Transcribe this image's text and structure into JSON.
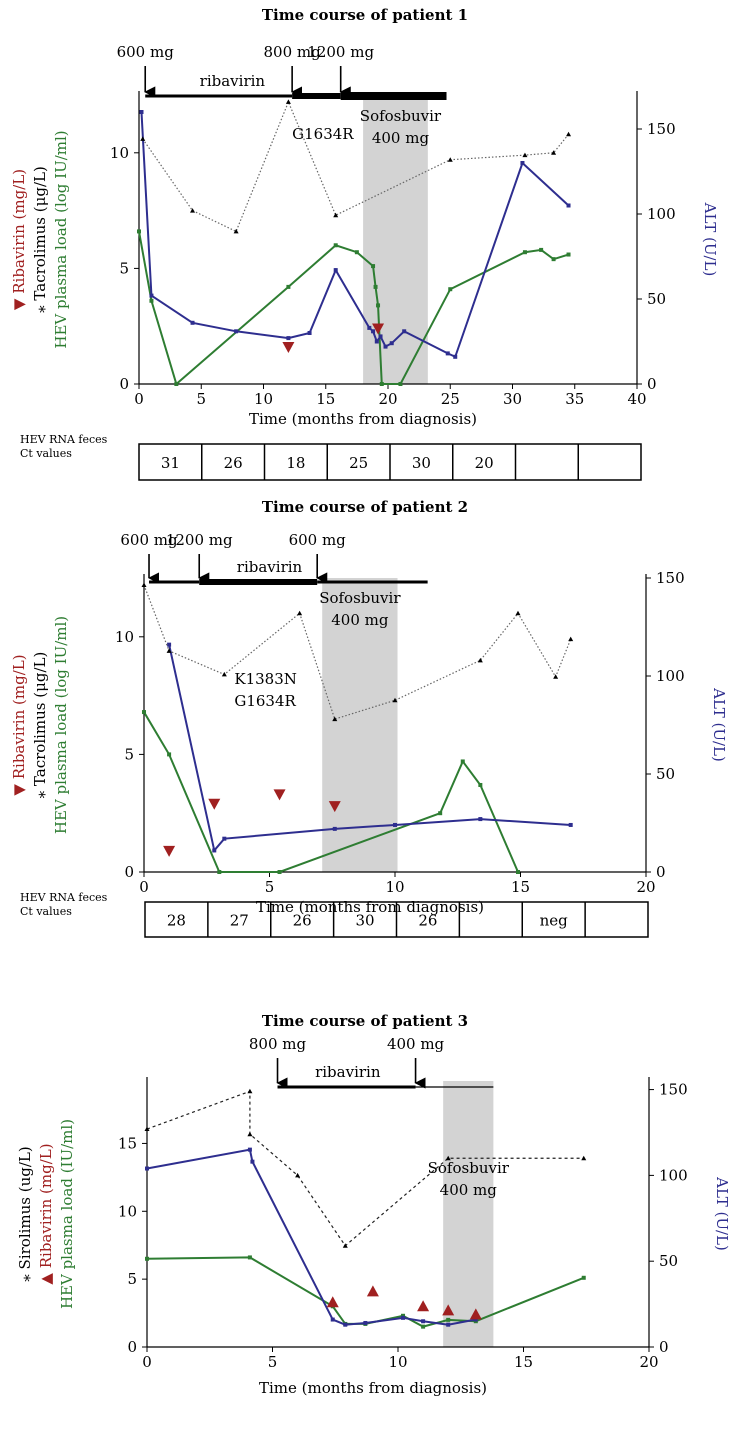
{
  "chart_data": [
    {
      "type": "line",
      "title": "Time course of patient 1",
      "xlabel": "Time (months from diagnosis)",
      "xlim": [
        0,
        40
      ],
      "x_ticks": [
        "0",
        "5",
        "10",
        "15",
        "20",
        "25",
        "30",
        "35",
        "40"
      ],
      "ylim_left": [
        0,
        12.5
      ],
      "y_ticks_left": [
        "0",
        "5",
        "10"
      ],
      "ylim_right": [
        0,
        170
      ],
      "y_ticks_right": [
        "0",
        "50",
        "100",
        "150"
      ],
      "ylabel_left": [
        {
          "text": "Ribavirin (mg/L)",
          "color": "#a02020",
          "marker": "▼"
        },
        {
          "text": "Tacrolimus (μg/L)",
          "color": "#000000",
          "marker": "⁎"
        },
        {
          "text": "HEV plasma load (log IU/ml)",
          "color": "#2e7d32",
          "marker": ""
        }
      ],
      "ylabel_right": "ALT (U/L)",
      "ylabel_right_color": "#2e2e8f",
      "shaded_region": [
        18,
        23.2
      ],
      "shaded_label": [
        "Sofosbuvir",
        "400 mg"
      ],
      "shaded_label_x": 21,
      "mutation_label": [
        "G1634R"
      ],
      "mutation_x": 12.3,
      "mutation_y": 10.6,
      "therapy": {
        "label": "ribavirin",
        "label_x": 7.5,
        "segments": [
          {
            "from": 0.5,
            "to": 12.3,
            "weight": 3
          },
          {
            "from": 12.3,
            "to": 16.2,
            "weight": 6
          },
          {
            "from": 16.2,
            "to": 24.7,
            "weight": 8
          }
        ],
        "doses": [
          {
            "label": "600 mg",
            "x": 0.5
          },
          {
            "label": "800 mg",
            "x": 12.3
          },
          {
            "label": "1200 mg",
            "x": 16.2
          }
        ]
      },
      "series": [
        {
          "name": "HEV plasma load",
          "axis": "left",
          "color": "#2e7d32",
          "style": "solid",
          "x": [
            0,
            1,
            3,
            12,
            15.8,
            17.5,
            18.8,
            19,
            19.2,
            19.5,
            21,
            25,
            31,
            32.3,
            33.3,
            34.5
          ],
          "y": [
            6.6,
            3.6,
            0,
            4.2,
            6,
            5.7,
            5.1,
            4.2,
            3.4,
            0,
            0,
            4.1,
            5.7,
            5.8,
            5.4,
            5.6
          ]
        },
        {
          "name": "ALT",
          "axis": "right",
          "color": "#2e2e8f",
          "style": "solid",
          "x": [
            0.2,
            1,
            4.3,
            7.8,
            12,
            13.7,
            15.8,
            18.5,
            18.8,
            19.1,
            19.4,
            19.8,
            20.3,
            21.3,
            24.8,
            25.4,
            30.8,
            34.5
          ],
          "y": [
            160,
            52,
            36,
            31,
            27,
            30,
            67,
            33,
            31,
            25,
            28,
            22,
            24,
            31,
            18,
            16,
            130,
            105
          ]
        },
        {
          "name": "Tacrolimus",
          "axis": "left",
          "color": "#666666",
          "style": "dotted",
          "x": [
            0.3,
            4.3,
            7.8,
            12,
            15.8,
            25,
            31,
            33.3,
            34.5
          ],
          "y": [
            10.6,
            7.5,
            6.6,
            12.2,
            7.3,
            9.7,
            9.9,
            10,
            10.8
          ]
        },
        {
          "name": "Ribavirin",
          "axis": "left",
          "color": "#a02020",
          "style": "markers",
          "marker": "down",
          "x": [
            12,
            19.2
          ],
          "y": [
            1.6,
            2.4
          ]
        }
      ],
      "ct_label": [
        "HEV RNA feces",
        "Ct values"
      ],
      "ct_values": [
        "31",
        "26",
        "18",
        "25",
        "30",
        "20",
        "",
        ""
      ]
    },
    {
      "type": "line",
      "title": "Time course of patient 2",
      "xlabel": "Time (months from diagnosis)",
      "xlim": [
        0,
        20
      ],
      "x_ticks": [
        "0",
        "5",
        "10",
        "15",
        "20"
      ],
      "ylim_left": [
        0,
        12.5
      ],
      "y_ticks_left": [
        "0",
        "5",
        "10"
      ],
      "ylim_right": [
        0,
        150
      ],
      "y_ticks_right": [
        "0",
        "50",
        "100",
        "150"
      ],
      "ylabel_left": [
        {
          "text": "Ribavirin (mg/L)",
          "color": "#a02020",
          "marker": "▼"
        },
        {
          "text": "Tacrolimus (μg/L)",
          "color": "#000000",
          "marker": "⁎"
        },
        {
          "text": "HEV plasma load (log IU/ml)",
          "color": "#2e7d32",
          "marker": ""
        }
      ],
      "ylabel_right": "ALT (U/L)",
      "ylabel_right_color": "#2e2e8f",
      "shaded_region": [
        7.1,
        10.1
      ],
      "shaded_label": [
        "Sofosbuvir",
        "400 mg"
      ],
      "shaded_label_x": 8.6,
      "mutation_label": [
        "K1383N",
        "G1634R"
      ],
      "mutation_x": 3.6,
      "mutation_y": 8,
      "therapy": {
        "label": "ribavirin",
        "label_x": 5,
        "segments": [
          {
            "from": 0.2,
            "to": 2.2,
            "weight": 3
          },
          {
            "from": 2.2,
            "to": 6.9,
            "weight": 6
          },
          {
            "from": 6.9,
            "to": 11.3,
            "weight": 3
          }
        ],
        "doses": [
          {
            "label": "600 mg",
            "x": 0.2
          },
          {
            "label": "1200 mg",
            "x": 2.2
          },
          {
            "label": "600 mg",
            "x": 6.9
          }
        ]
      },
      "series": [
        {
          "name": "HEV plasma load",
          "axis": "left",
          "color": "#2e7d32",
          "style": "solid",
          "x": [
            0,
            1,
            3,
            5.4,
            11.8,
            12.7,
            13.4,
            14.9
          ],
          "y": [
            6.8,
            5,
            0,
            0,
            2.5,
            4.7,
            3.7,
            0
          ]
        },
        {
          "name": "ALT",
          "axis": "right",
          "color": "#2e2e8f",
          "style": "solid",
          "x": [
            1,
            2.8,
            3.2,
            7.6,
            10,
            13.4,
            17
          ],
          "y": [
            116,
            11,
            17,
            22,
            24,
            27,
            24
          ]
        },
        {
          "name": "Tacrolimus",
          "axis": "left",
          "color": "#666666",
          "style": "dotted",
          "x": [
            0,
            1,
            3.2,
            6.2,
            7.6,
            10,
            13.4,
            14.9,
            16.4,
            17
          ],
          "y": [
            12.2,
            9.4,
            8.4,
            11,
            6.5,
            7.3,
            9,
            11,
            8.3,
            9.9
          ]
        },
        {
          "name": "Ribavirin",
          "axis": "left",
          "color": "#a02020",
          "style": "markers",
          "marker": "down",
          "x": [
            1,
            2.8,
            5.4,
            7.6
          ],
          "y": [
            0.9,
            2.9,
            3.3,
            2.8
          ]
        }
      ],
      "ct_label": [
        "HEV RNA feces",
        "Ct values"
      ],
      "ct_values": [
        "28",
        "27",
        "26",
        "30",
        "26",
        "",
        "neg",
        ""
      ]
    },
    {
      "type": "line",
      "title": "Time course of patient 3",
      "xlabel": "Time (months from diagnosis)",
      "xlim": [
        0,
        20
      ],
      "x_ticks": [
        "0",
        "5",
        "10",
        "15",
        "20"
      ],
      "ylim_left": [
        0,
        19.6
      ],
      "y_ticks_left": [
        "0",
        "5",
        "10",
        "15"
      ],
      "ylim_right": [
        0,
        155
      ],
      "y_ticks_right": [
        "0",
        "50",
        "100",
        "150"
      ],
      "ylabel_left": [
        {
          "text": "Sirolimus (ug/L)",
          "color": "#000000",
          "marker": "⁎"
        },
        {
          "text": "Ribavirin (mg/L)",
          "color": "#a02020",
          "marker": "▲"
        },
        {
          "text": "HEV plasma load (IU/ml)",
          "color": "#2e7d32",
          "marker": ""
        }
      ],
      "ylabel_right": "ALT (U/L)",
      "ylabel_right_color": "#2e2e8f",
      "shaded_region": [
        11.8,
        13.8
      ],
      "shaded_label": [
        "Sofosbuvir",
        "400 mg"
      ],
      "shaded_label_x": 12.8,
      "mutation_label": [],
      "therapy": {
        "label": "ribavirin",
        "label_x": 8,
        "segments": [
          {
            "from": 5.2,
            "to": 10.7,
            "weight": 3
          },
          {
            "from": 10.7,
            "to": 13.8,
            "weight": 1.2
          }
        ],
        "doses": [
          {
            "label": "800 mg",
            "x": 5.2
          },
          {
            "label": "400 mg",
            "x": 10.7
          }
        ]
      },
      "series": [
        {
          "name": "HEV plasma load",
          "axis": "left",
          "color": "#2e7d32",
          "style": "solid",
          "x": [
            0,
            4.1,
            7.4,
            7.9,
            8.7,
            10.2,
            11,
            12,
            13.1,
            17.4
          ],
          "y": [
            6.5,
            6.6,
            3,
            1.7,
            1.7,
            2.3,
            1.5,
            2,
            1.9,
            5.1
          ]
        },
        {
          "name": "ALT",
          "axis": "right",
          "color": "#2e2e8f",
          "style": "solid",
          "x": [
            0,
            4.1,
            4.2,
            7.4,
            7.9,
            8.7,
            10.2,
            11,
            12,
            13.1
          ],
          "y": [
            104,
            115,
            108,
            16,
            13,
            14,
            17,
            15,
            13,
            16
          ]
        },
        {
          "name": "Sirolimus",
          "axis": "right",
          "color": "#222222",
          "style": "dashed",
          "x": [
            0,
            4.1,
            4.1,
            6,
            7.9,
            12,
            17.4
          ],
          "y": [
            127,
            149,
            124,
            100,
            59,
            110,
            110
          ]
        },
        {
          "name": "Ribavirin",
          "axis": "left",
          "color": "#a02020",
          "style": "markers",
          "marker": "up",
          "x": [
            7.4,
            9,
            11,
            12,
            13.1
          ],
          "y": [
            3.3,
            4.1,
            3,
            2.7,
            2.4
          ]
        }
      ],
      "ct_label": [],
      "ct_values": []
    }
  ]
}
